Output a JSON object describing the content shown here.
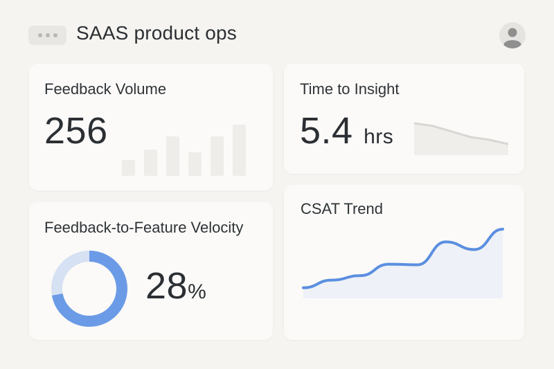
{
  "header": {
    "title": "SAAS product ops",
    "menu_icon": "ellipsis-icon",
    "avatar_icon": "user-avatar-icon"
  },
  "cards": {
    "feedback_volume": {
      "title": "Feedback Volume",
      "value": "256",
      "sparkbars": [
        0.3,
        0.5,
        0.75,
        0.45,
        0.75,
        0.98
      ]
    },
    "time_to_insight": {
      "title": "Time to Insight",
      "value": "5.4",
      "unit": "hrs",
      "trend": [
        0.95,
        0.85,
        0.65,
        0.45,
        0.35,
        0.2
      ]
    },
    "velocity": {
      "title": "Feedback-to-Feature Velocity",
      "value": "28",
      "unit": "%",
      "donut_fraction": 0.72,
      "colors": {
        "fill": "#6b9be6",
        "track": "#d6e1f3"
      }
    },
    "csat": {
      "title": "CSAT Trend",
      "trend": [
        0.08,
        0.2,
        0.27,
        0.45,
        0.44,
        0.8,
        0.68,
        1.0
      ],
      "colors": {
        "line": "#5b8fe0",
        "area": "#eef1f7"
      }
    }
  }
}
